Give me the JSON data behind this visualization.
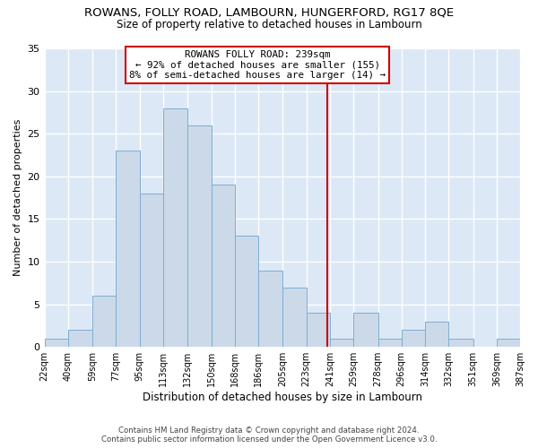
{
  "title": "ROWANS, FOLLY ROAD, LAMBOURN, HUNGERFORD, RG17 8QE",
  "subtitle": "Size of property relative to detached houses in Lambourn",
  "xlabel": "Distribution of detached houses by size in Lambourn",
  "ylabel": "Number of detached properties",
  "bin_edges": [
    22,
    40,
    59,
    77,
    95,
    113,
    132,
    150,
    168,
    186,
    205,
    223,
    241,
    259,
    278,
    296,
    314,
    332,
    351,
    369,
    387
  ],
  "counts": [
    1,
    2,
    6,
    23,
    18,
    28,
    26,
    19,
    13,
    9,
    7,
    4,
    1,
    4,
    1,
    2,
    3,
    1,
    0,
    1
  ],
  "bar_color": "#ccd9e8",
  "bar_edge_color": "#7bafd4",
  "vline_x": 239,
  "vline_color": "#cc0000",
  "annotation_title": "ROWANS FOLLY ROAD: 239sqm",
  "annotation_line1": "← 92% of detached houses are smaller (155)",
  "annotation_line2": "8% of semi-detached houses are larger (14) →",
  "annotation_box_color": "#cc0000",
  "annotation_bg": "#ffffff",
  "ylim": [
    0,
    35
  ],
  "yticks": [
    0,
    5,
    10,
    15,
    20,
    25,
    30,
    35
  ],
  "tick_labels": [
    "22sqm",
    "40sqm",
    "59sqm",
    "77sqm",
    "95sqm",
    "113sqm",
    "132sqm",
    "150sqm",
    "168sqm",
    "186sqm",
    "205sqm",
    "223sqm",
    "241sqm",
    "259sqm",
    "278sqm",
    "296sqm",
    "314sqm",
    "332sqm",
    "351sqm",
    "369sqm",
    "387sqm"
  ],
  "footer_line1": "Contains HM Land Registry data © Crown copyright and database right 2024.",
  "footer_line2": "Contains public sector information licensed under the Open Government Licence v3.0.",
  "bg_color": "#ffffff",
  "plot_bg_color": "#dce8f5"
}
